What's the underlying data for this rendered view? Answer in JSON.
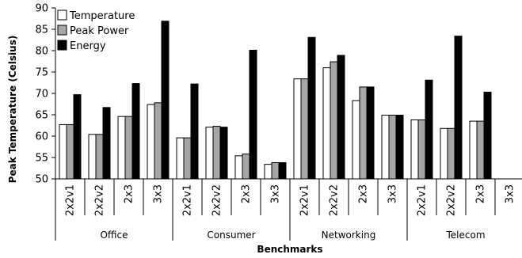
{
  "chart_data": {
    "type": "bar",
    "xlabel": "Benchmarks",
    "ylabel": "Peak Temperature (Celsius)",
    "ylim": [
      50,
      90
    ],
    "yticks": [
      50,
      55,
      60,
      65,
      70,
      75,
      80,
      85,
      90
    ],
    "grid": false,
    "legend_position": "top-left",
    "groups": [
      {
        "name": "Office",
        "categories": [
          "2x2v1",
          "2x2v2",
          "2x3",
          "3x3"
        ]
      },
      {
        "name": "Consumer",
        "categories": [
          "2x2v1",
          "2x2v2",
          "2x3",
          "3x3"
        ]
      },
      {
        "name": "Networking",
        "categories": [
          "2x2v1",
          "2x2v2",
          "2x3",
          "3x3"
        ]
      },
      {
        "name": "Telecom",
        "categories": [
          "2x2v1",
          "2x2v2",
          "2x3",
          "3x3"
        ]
      }
    ],
    "series": [
      {
        "name": "Temperature",
        "color": "#ffffff",
        "values": [
          62.7,
          60.4,
          64.6,
          67.4,
          59.6,
          62.1,
          55.4,
          53.4,
          73.4,
          76.0,
          68.3,
          64.9,
          63.8,
          61.8,
          63.5,
          null
        ]
      },
      {
        "name": "Peak Power",
        "color": "#a6a6a6",
        "values": [
          62.7,
          60.4,
          64.6,
          67.8,
          59.6,
          62.3,
          55.8,
          53.8,
          73.4,
          77.4,
          71.5,
          64.9,
          63.8,
          61.8,
          63.5,
          null
        ]
      },
      {
        "name": "Energy",
        "color": "#000000",
        "values": [
          69.7,
          66.7,
          72.3,
          86.9,
          72.2,
          62.1,
          80.1,
          53.8,
          83.1,
          78.9,
          71.5,
          64.9,
          73.1,
          83.4,
          70.3,
          null
        ]
      }
    ]
  }
}
